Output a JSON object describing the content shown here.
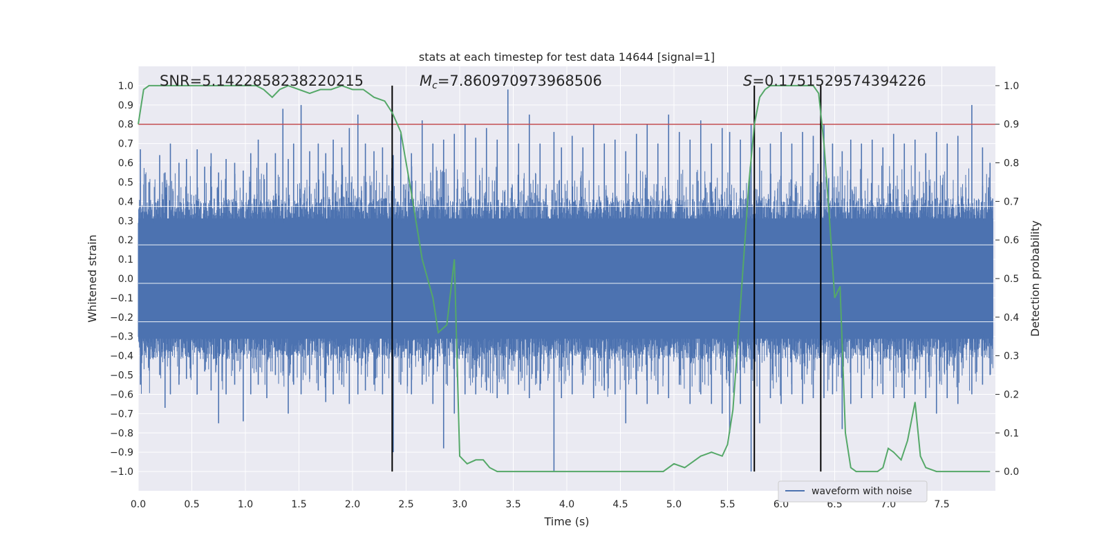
{
  "chart_data": {
    "type": "line",
    "title": "stats at each timestep for test data 14644 [signal=1]",
    "xlabel": "Time (s)",
    "ylabel": "Whitened strain",
    "y2label": "Detection probability",
    "xlim": [
      0.0,
      8.0
    ],
    "ylim": [
      -1.1,
      1.1
    ],
    "y2lim": [
      -0.05,
      1.05
    ],
    "xticks": [
      "0.0",
      "0.5",
      "1.0",
      "1.5",
      "2.0",
      "2.5",
      "3.0",
      "3.5",
      "4.0",
      "4.5",
      "5.0",
      "5.5",
      "6.0",
      "6.5",
      "7.0",
      "7.5"
    ],
    "xtick_values": [
      0.0,
      0.5,
      1.0,
      1.5,
      2.0,
      2.5,
      3.0,
      3.5,
      4.0,
      4.5,
      5.0,
      5.5,
      6.0,
      6.5,
      7.0,
      7.5
    ],
    "yticks": [
      "1.0",
      "0.9",
      "0.8",
      "0.7",
      "0.6",
      "0.5",
      "0.4",
      "0.3",
      "0.2",
      "0.1",
      "0.0",
      "−0.1",
      "−0.2",
      "−0.3",
      "−0.4",
      "−0.5",
      "−0.6",
      "−0.7",
      "−0.8",
      "−0.9",
      "−1.0"
    ],
    "ytick_values": [
      1.0,
      0.9,
      0.8,
      0.7,
      0.6,
      0.5,
      0.4,
      0.3,
      0.2,
      0.1,
      0.0,
      -0.1,
      -0.2,
      -0.3,
      -0.4,
      -0.5,
      -0.6,
      -0.7,
      -0.8,
      -0.9,
      -1.0
    ],
    "y2ticks": [
      "1.0",
      "0.9",
      "0.8",
      "0.7",
      "0.6",
      "0.5",
      "0.4",
      "0.3",
      "0.2",
      "0.1",
      "0.0"
    ],
    "y2tick_values": [
      1.0,
      0.9,
      0.8,
      0.7,
      0.6,
      0.5,
      0.4,
      0.3,
      0.2,
      0.1,
      0.0
    ],
    "threshold": 0.9,
    "event_lines": [
      2.37,
      5.75,
      6.37
    ],
    "annotations": {
      "snr": "SNR=5.142285823822021​5",
      "mc_symbol": "M",
      "mc_sub": "c",
      "mc_value": "=7.860970973968506",
      "s_symbol": "S",
      "s_value": "=0.1751529574394226"
    },
    "legend": {
      "label": "waveform with noise",
      "position": "lower-right"
    },
    "waveform": {
      "name": "waveform with noise",
      "envelope_typical": 0.38,
      "spikes": [
        [
          0.02,
          0.67,
          -0.55
        ],
        [
          0.1,
          0.5,
          -0.45
        ],
        [
          0.2,
          0.64,
          -0.5
        ],
        [
          0.25,
          0.55,
          -0.67
        ],
        [
          0.3,
          0.7,
          -0.6
        ],
        [
          0.38,
          0.6,
          -0.55
        ],
        [
          0.45,
          0.62,
          -0.52
        ],
        [
          0.55,
          0.67,
          -0.6
        ],
        [
          0.62,
          0.58,
          -0.48
        ],
        [
          0.68,
          0.65,
          -0.58
        ],
        [
          0.75,
          0.55,
          -0.75
        ],
        [
          0.82,
          0.62,
          -0.6
        ],
        [
          0.9,
          0.6,
          -0.55
        ],
        [
          0.98,
          0.56,
          -0.74
        ],
        [
          1.05,
          0.65,
          -0.6
        ],
        [
          1.12,
          0.72,
          -0.55
        ],
        [
          1.2,
          0.6,
          -0.62
        ],
        [
          1.28,
          0.65,
          -0.5
        ],
        [
          1.35,
          0.88,
          -0.48
        ],
        [
          1.4,
          0.62,
          -0.7
        ],
        [
          1.45,
          0.7,
          -0.55
        ],
        [
          1.52,
          0.9,
          -0.6
        ],
        [
          1.6,
          0.66,
          -0.52
        ],
        [
          1.68,
          0.7,
          -0.58
        ],
        [
          1.75,
          0.65,
          -0.64
        ],
        [
          1.82,
          0.72,
          -0.6
        ],
        [
          1.9,
          0.68,
          -0.55
        ],
        [
          1.97,
          0.78,
          -0.65
        ],
        [
          2.05,
          0.85,
          -0.6
        ],
        [
          2.12,
          0.7,
          -0.58
        ],
        [
          2.2,
          0.66,
          -0.55
        ],
        [
          2.28,
          0.68,
          -0.6
        ],
        [
          2.38,
          0.64,
          -0.9
        ],
        [
          2.45,
          0.75,
          -0.55
        ],
        [
          2.55,
          0.65,
          -0.6
        ],
        [
          2.65,
          0.82,
          -0.55
        ],
        [
          2.75,
          0.7,
          -0.65
        ],
        [
          2.85,
          0.72,
          -0.88
        ],
        [
          2.95,
          0.75,
          -0.7
        ],
        [
          3.05,
          0.8,
          -0.6
        ],
        [
          3.15,
          0.73,
          -0.6
        ],
        [
          3.25,
          0.78,
          -0.58
        ],
        [
          3.35,
          0.72,
          -0.62
        ],
        [
          3.45,
          0.98,
          -0.6
        ],
        [
          3.55,
          0.7,
          -0.55
        ],
        [
          3.65,
          0.85,
          -0.62
        ],
        [
          3.75,
          0.7,
          -0.58
        ],
        [
          3.88,
          0.76,
          -1.0
        ],
        [
          3.95,
          0.68,
          -0.62
        ],
        [
          4.05,
          0.74,
          -0.6
        ],
        [
          4.15,
          0.68,
          -0.55
        ],
        [
          4.25,
          0.8,
          -0.62
        ],
        [
          4.35,
          0.7,
          -0.58
        ],
        [
          4.45,
          0.72,
          -0.6
        ],
        [
          4.55,
          0.66,
          -0.75
        ],
        [
          4.65,
          0.75,
          -0.6
        ],
        [
          4.75,
          0.8,
          -0.65
        ],
        [
          4.85,
          0.7,
          -0.6
        ],
        [
          4.95,
          0.85,
          -0.62
        ],
        [
          5.05,
          0.76,
          -0.55
        ],
        [
          5.15,
          0.72,
          -0.65
        ],
        [
          5.25,
          0.82,
          -0.6
        ],
        [
          5.35,
          0.7,
          -0.65
        ],
        [
          5.45,
          0.78,
          -0.7
        ],
        [
          5.52,
          0.76,
          -0.8
        ],
        [
          5.62,
          0.72,
          -0.65
        ],
        [
          5.72,
          0.8,
          -1.0
        ],
        [
          5.8,
          0.68,
          -0.75
        ],
        [
          5.9,
          0.7,
          -0.62
        ],
        [
          6.0,
          0.76,
          -0.65
        ],
        [
          6.1,
          0.7,
          -0.6
        ],
        [
          6.2,
          0.76,
          -0.65
        ],
        [
          6.3,
          0.74,
          -0.62
        ],
        [
          6.4,
          0.8,
          -0.62
        ],
        [
          6.48,
          0.7,
          -0.6
        ],
        [
          6.57,
          0.66,
          -0.78
        ],
        [
          6.65,
          0.72,
          -0.65
        ],
        [
          6.75,
          0.7,
          -0.62
        ],
        [
          6.85,
          0.72,
          -0.62
        ],
        [
          6.95,
          0.68,
          -0.6
        ],
        [
          7.05,
          0.75,
          -0.62
        ],
        [
          7.15,
          0.7,
          -0.62
        ],
        [
          7.25,
          0.72,
          -0.6
        ],
        [
          7.35,
          0.65,
          -0.62
        ],
        [
          7.45,
          0.76,
          -0.7
        ],
        [
          7.55,
          0.7,
          -0.62
        ],
        [
          7.65,
          0.74,
          -0.65
        ],
        [
          7.78,
          0.9,
          -0.6
        ],
        [
          7.88,
          0.68,
          -0.55
        ],
        [
          7.95,
          0.6,
          -0.5
        ]
      ]
    },
    "probability": {
      "name": "detection probability",
      "x": [
        0.0,
        0.05,
        0.1,
        0.2,
        0.3,
        0.5,
        0.7,
        0.9,
        1.1,
        1.17,
        1.25,
        1.32,
        1.4,
        1.5,
        1.6,
        1.7,
        1.8,
        1.9,
        2.0,
        2.1,
        2.15,
        2.2,
        2.3,
        2.37,
        2.45,
        2.55,
        2.65,
        2.75,
        2.8,
        2.88,
        2.95,
        3.0,
        3.07,
        3.15,
        3.22,
        3.28,
        3.35,
        3.5,
        3.7,
        3.9,
        4.0,
        4.1,
        4.3,
        4.5,
        4.7,
        4.9,
        5.0,
        5.1,
        5.15,
        5.25,
        5.35,
        5.45,
        5.5,
        5.55,
        5.6,
        5.65,
        5.7,
        5.75,
        5.8,
        5.85,
        5.9,
        5.95,
        6.0,
        6.1,
        6.2,
        6.3,
        6.35,
        6.4,
        6.45,
        6.5,
        6.55,
        6.6,
        6.65,
        6.7,
        6.8,
        6.9,
        6.95,
        7.0,
        7.05,
        7.12,
        7.18,
        7.25,
        7.3,
        7.35,
        7.45,
        7.6,
        7.8,
        7.95
      ],
      "y": [
        0.9,
        0.99,
        1.0,
        1.0,
        1.0,
        1.0,
        1.0,
        1.0,
        1.0,
        0.99,
        0.97,
        0.99,
        1.0,
        0.99,
        0.98,
        0.99,
        0.99,
        1.0,
        0.99,
        0.99,
        0.98,
        0.97,
        0.96,
        0.93,
        0.88,
        0.72,
        0.55,
        0.45,
        0.36,
        0.38,
        0.55,
        0.04,
        0.02,
        0.03,
        0.03,
        0.01,
        0.0,
        0.0,
        0.0,
        0.0,
        0.0,
        0.0,
        0.0,
        0.0,
        0.0,
        0.0,
        0.02,
        0.01,
        0.02,
        0.04,
        0.05,
        0.04,
        0.07,
        0.16,
        0.35,
        0.55,
        0.75,
        0.9,
        0.97,
        0.99,
        1.0,
        1.0,
        1.0,
        1.0,
        1.0,
        1.0,
        0.98,
        0.85,
        0.66,
        0.45,
        0.48,
        0.1,
        0.01,
        0.0,
        0.0,
        0.0,
        0.01,
        0.06,
        0.05,
        0.03,
        0.08,
        0.18,
        0.04,
        0.01,
        0.0,
        0.0,
        0.0,
        0.0
      ]
    },
    "colors": {
      "waveform": "#4c72b0",
      "probability": "#55a868",
      "threshold": "#c44e52",
      "event_line": "#000000",
      "plot_bg": "#eaeaf2",
      "grid": "#ffffff"
    }
  }
}
